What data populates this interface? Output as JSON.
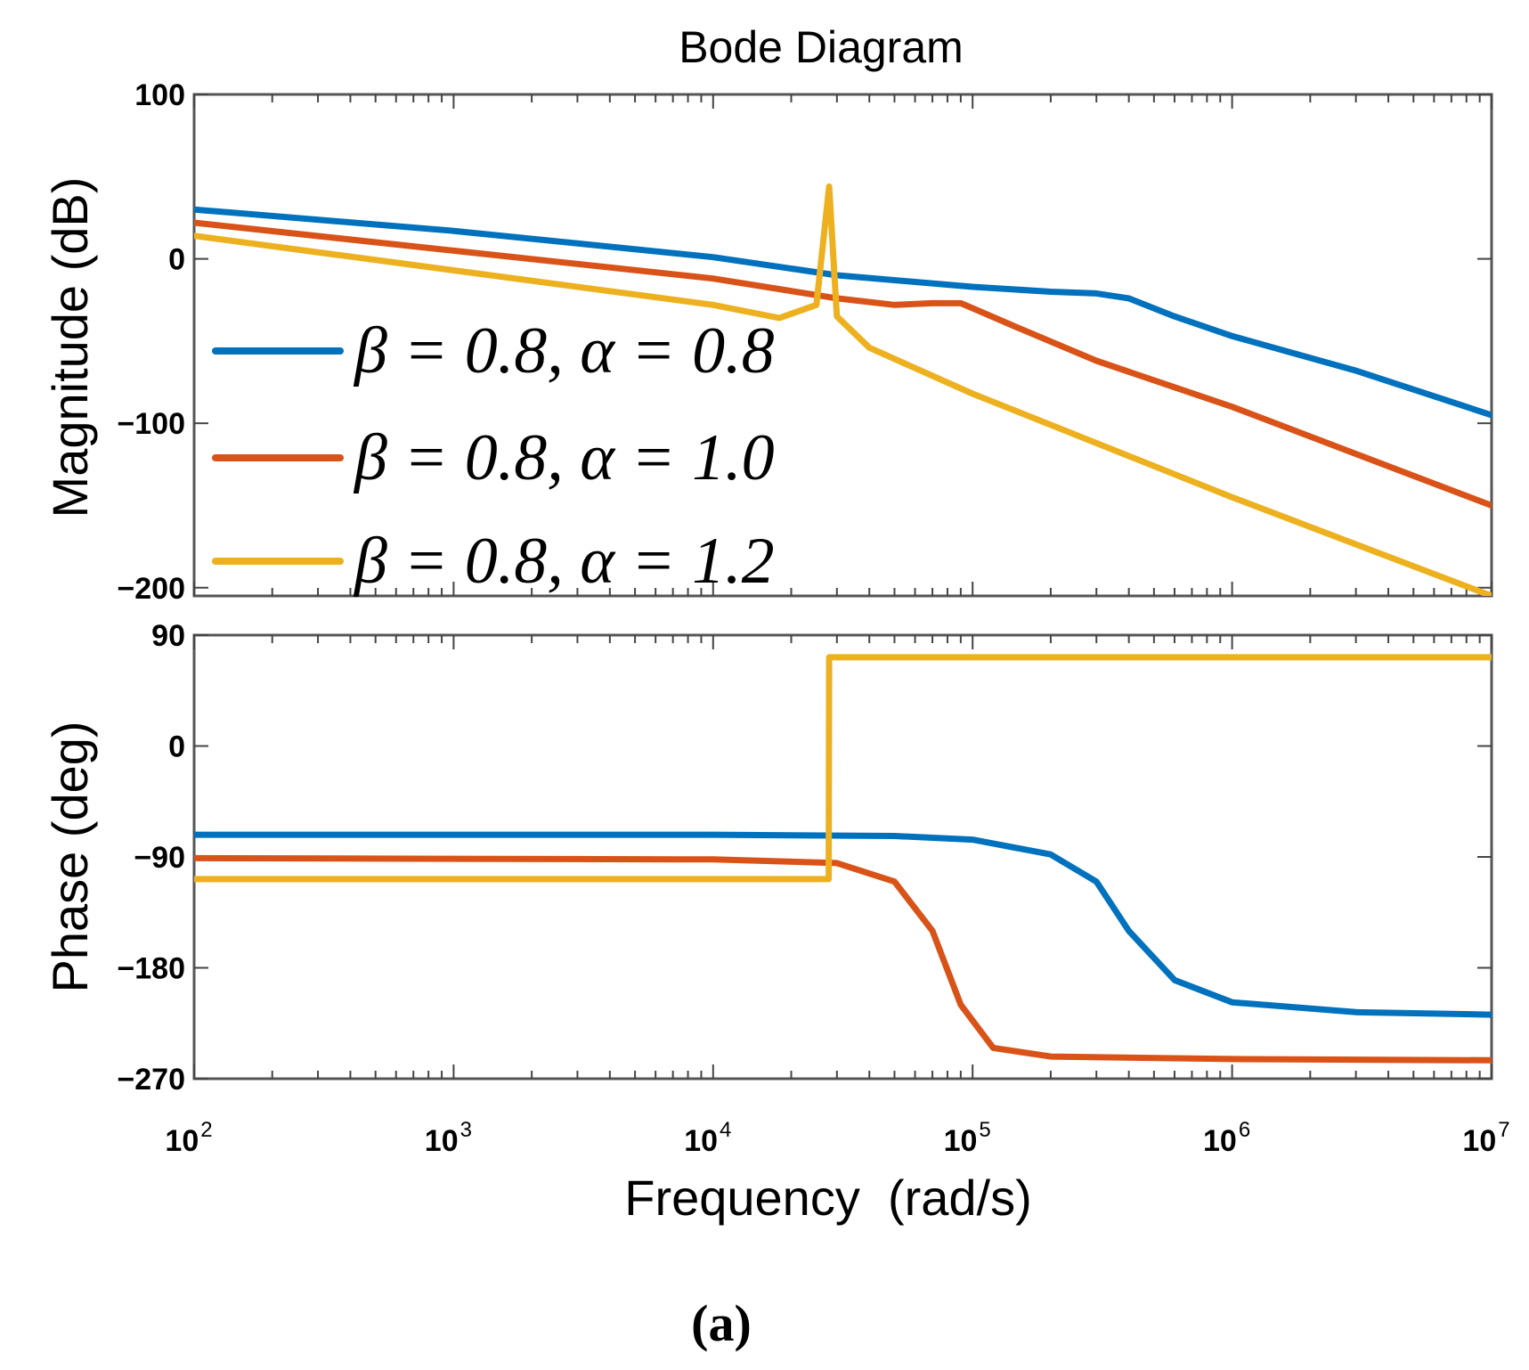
{
  "chart_data": {
    "type": "line",
    "title": "Bode Diagram",
    "caption": "(a)",
    "xlabel": "Frequency  (rad/s)",
    "x_scale": "log",
    "xlim": [
      100,
      10000000
    ],
    "x_ticks": [
      {
        "value": 100,
        "base": "10",
        "exp": "2"
      },
      {
        "value": 1000,
        "base": "10",
        "exp": "3"
      },
      {
        "value": 10000,
        "base": "10",
        "exp": "4"
      },
      {
        "value": 100000,
        "base": "10",
        "exp": "5"
      },
      {
        "value": 1000000,
        "base": "10",
        "exp": "6"
      },
      {
        "value": 10000000,
        "base": "10",
        "exp": "7"
      }
    ],
    "colors": {
      "blue": "#0072BD",
      "red": "#D95319",
      "yellow": "#EDB120"
    },
    "magnitude": {
      "ylabel": "Magnitude (dB)",
      "ylim": [
        -205,
        100
      ],
      "yticks": [
        100,
        0,
        -100,
        -200
      ],
      "ytick_labels": [
        "100",
        "0",
        "−100",
        "−200"
      ]
    },
    "phase": {
      "ylabel": "Phase (deg)",
      "ylim": [
        -270,
        90
      ],
      "yticks": [
        90,
        0,
        -90,
        -180,
        -270
      ],
      "ytick_labels": [
        "90",
        "0",
        "−90",
        "−180",
        "−270"
      ]
    },
    "legend": {
      "location": "middle-left",
      "entries": [
        {
          "name": "β = 0.8, α = 0.8",
          "color_key": "blue"
        },
        {
          "name": "β = 0.8, α = 1.0",
          "color_key": "red"
        },
        {
          "name": "β = 0.8, α = 1.2",
          "color_key": "yellow"
        }
      ]
    },
    "series": [
      {
        "name": "β = 0.8, α = 0.8",
        "color_key": "blue",
        "magnitude": [
          [
            100,
            30
          ],
          [
            1000,
            17
          ],
          [
            10000,
            1
          ],
          [
            30000,
            -10
          ],
          [
            100000,
            -17
          ],
          [
            200000,
            -20
          ],
          [
            300000,
            -21
          ],
          [
            400000,
            -24
          ],
          [
            600000,
            -35
          ],
          [
            1000000,
            -47
          ],
          [
            3000000,
            -68
          ],
          [
            10000000,
            -95
          ]
        ],
        "phase": [
          [
            100,
            -72
          ],
          [
            10000,
            -72
          ],
          [
            50000,
            -73
          ],
          [
            100000,
            -76
          ],
          [
            200000,
            -88
          ],
          [
            300000,
            -110
          ],
          [
            400000,
            -150
          ],
          [
            600000,
            -190
          ],
          [
            1000000,
            -208
          ],
          [
            3000000,
            -216
          ],
          [
            10000000,
            -218
          ]
        ]
      },
      {
        "name": "β = 0.8, α = 1.0",
        "color_key": "red",
        "magnitude": [
          [
            100,
            22
          ],
          [
            1000,
            5
          ],
          [
            10000,
            -12
          ],
          [
            30000,
            -24
          ],
          [
            50000,
            -28
          ],
          [
            70000,
            -27
          ],
          [
            90000,
            -27
          ],
          [
            100000,
            -30
          ],
          [
            150000,
            -42
          ],
          [
            300000,
            -62
          ],
          [
            1000000,
            -90
          ],
          [
            10000000,
            -150
          ]
        ],
        "phase": [
          [
            100,
            -91
          ],
          [
            10000,
            -92
          ],
          [
            30000,
            -95
          ],
          [
            50000,
            -110
          ],
          [
            70000,
            -150
          ],
          [
            90000,
            -210
          ],
          [
            120000,
            -245
          ],
          [
            200000,
            -252
          ],
          [
            1000000,
            -254
          ],
          [
            10000000,
            -255
          ]
        ]
      },
      {
        "name": "β = 0.8, α = 1.2",
        "color_key": "yellow",
        "magnitude": [
          [
            100,
            14
          ],
          [
            1000,
            -7
          ],
          [
            10000,
            -28
          ],
          [
            18000,
            -36
          ],
          [
            25000,
            -28
          ],
          [
            28000,
            44
          ],
          [
            30000,
            -35
          ],
          [
            40000,
            -54
          ],
          [
            100000,
            -82
          ],
          [
            1000000,
            -145
          ],
          [
            10000000,
            -205
          ]
        ],
        "phase": [
          [
            100,
            -108
          ],
          [
            27900,
            -108
          ],
          [
            28000,
            72
          ],
          [
            10000000,
            72
          ]
        ]
      }
    ]
  }
}
